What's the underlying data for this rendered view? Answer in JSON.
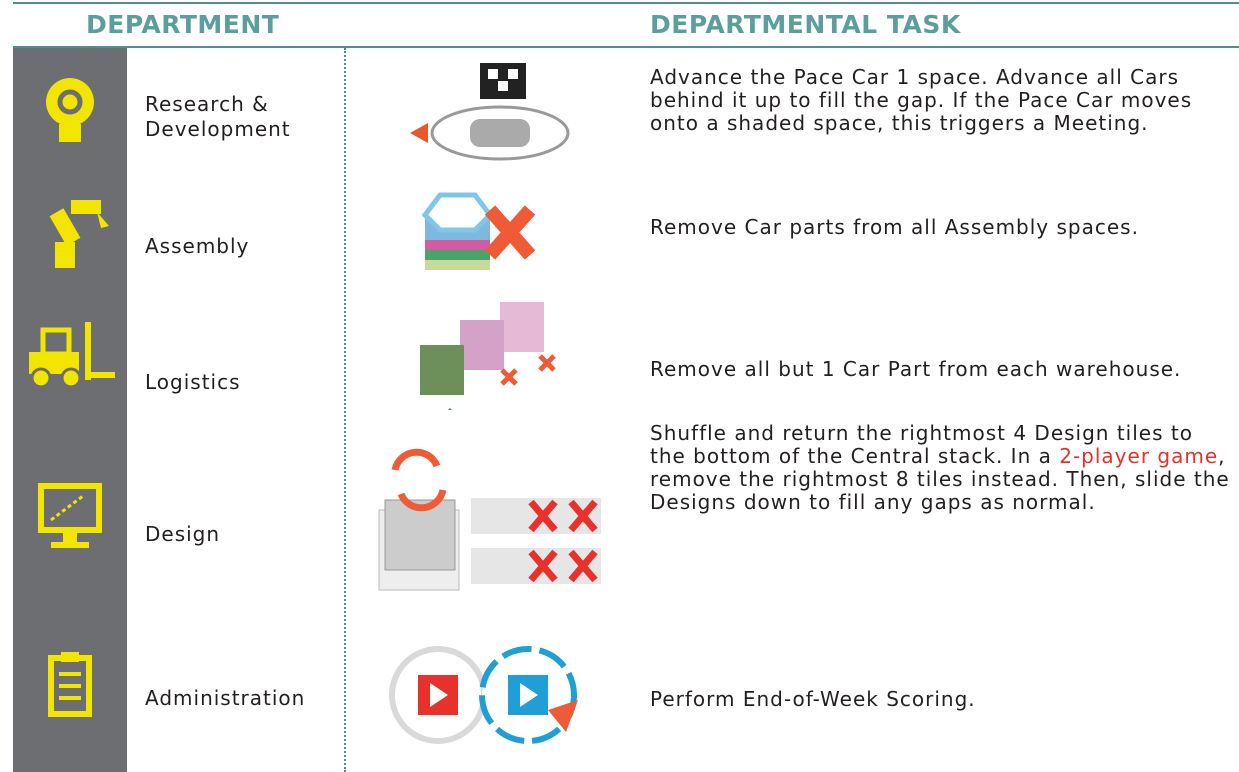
{
  "header": {
    "department": "DEPARTMENT",
    "task": "DEPARTMENTAL TASK"
  },
  "rows": [
    {
      "department": "Research & Development",
      "task": [
        {
          "text": "Advance the Pace Car 1 space. Advance all Cars behind it up to fill the gap. If the Pace Car moves onto a shaded space, this triggers a Meeting."
        }
      ]
    },
    {
      "department": "Assembly",
      "task": [
        {
          "text": "Remove Car parts from all Assembly spaces."
        }
      ]
    },
    {
      "department": "Logistics",
      "task": [
        {
          "text": "Remove all but 1 Car Part from each warehouse."
        }
      ]
    },
    {
      "department": "Design",
      "task": [
        {
          "text": "Shuffle and return the rightmost 4 Design tiles to the bottom of the Central stack. In a "
        },
        {
          "text": "2-player game",
          "color": "#e8312a"
        },
        {
          "text": ", remove the rightmost 8 tiles instead. Then, slide the Designs down to fill any gaps as normal."
        }
      ]
    },
    {
      "department": "Administration",
      "task": [
        {
          "text": "Perform End-of-Week Scoring."
        }
      ]
    }
  ]
}
